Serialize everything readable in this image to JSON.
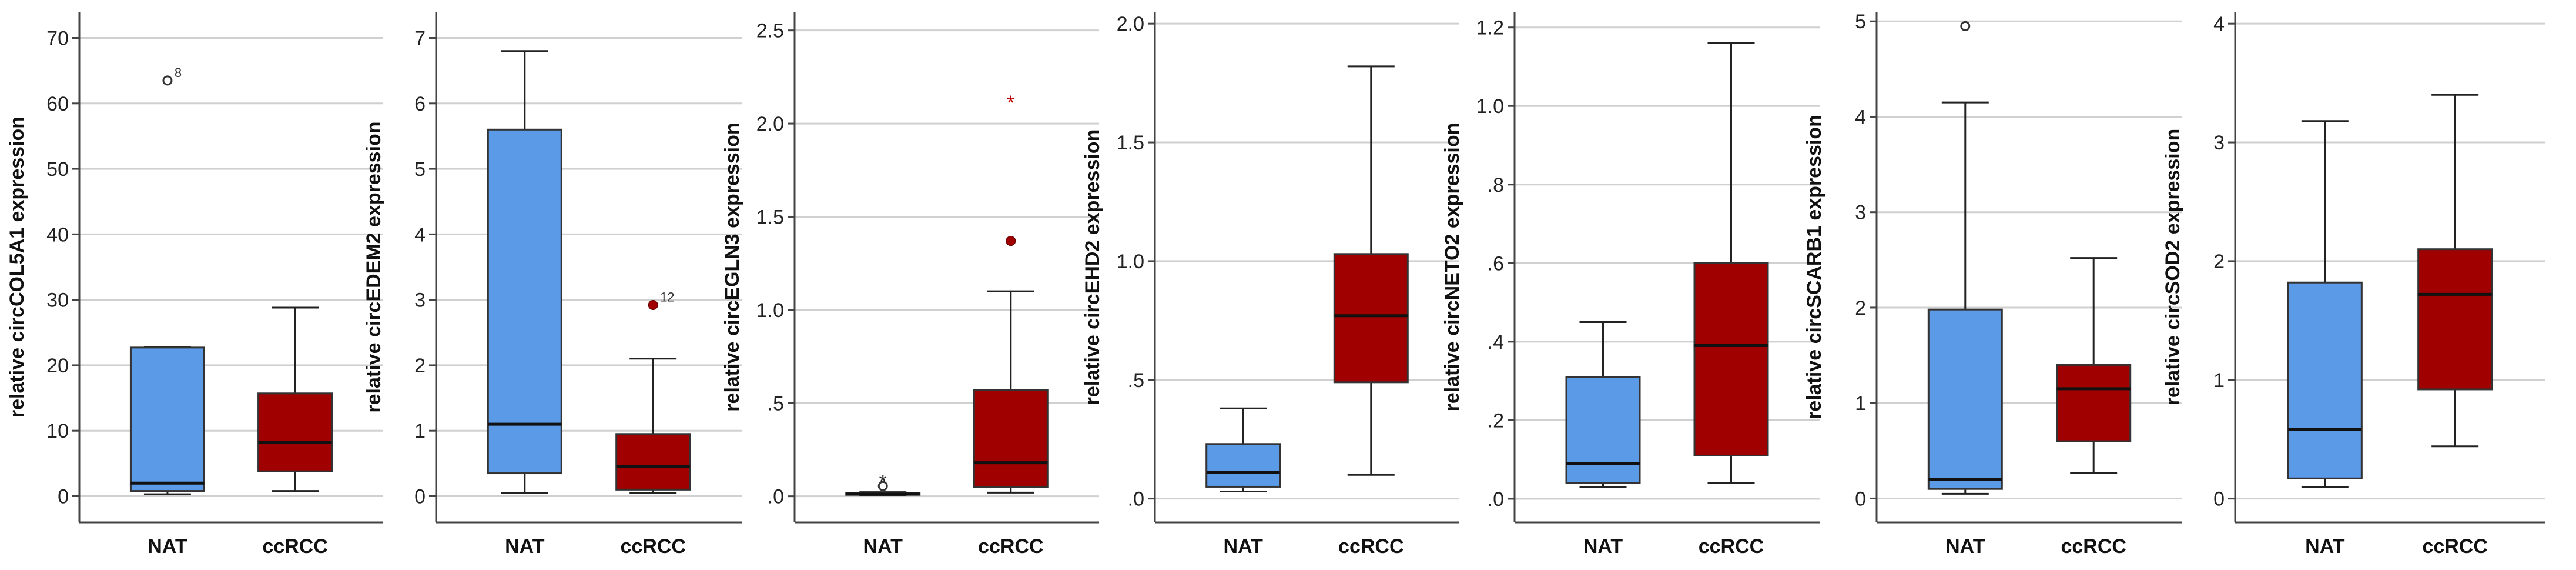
{
  "colors": {
    "NAT": "#5b9ae6",
    "ccRCC": "#a00000",
    "grid": "#d0d0d0",
    "axis": "#444444"
  },
  "chart_data": [
    {
      "type": "box",
      "ylabel": "relative circCOL5A1 expression",
      "ylim": [
        -4,
        74
      ],
      "ticks": [
        0,
        10,
        20,
        30,
        40,
        50,
        60,
        70
      ],
      "tick_labels": [
        "0",
        "10",
        "20",
        "30",
        "40",
        "50",
        "60",
        "70"
      ],
      "categories": [
        "NAT",
        "ccRCC"
      ],
      "boxes": [
        {
          "name": "NAT",
          "min": 0.3,
          "q1": 0.8,
          "median": 2.0,
          "q3": 22.7,
          "max": 22.8,
          "outliers": [
            {
              "value": 63.5,
              "marker": "circle",
              "label": "8"
            }
          ]
        },
        {
          "name": "ccRCC",
          "min": 0.8,
          "q1": 3.8,
          "median": 8.2,
          "q3": 15.7,
          "max": 28.8,
          "outliers": []
        }
      ]
    },
    {
      "type": "box",
      "ylabel": "relative circEDEM2 expression",
      "ylim": [
        -0.4,
        7.4
      ],
      "ticks": [
        0,
        1,
        2,
        3,
        4,
        5,
        6,
        7
      ],
      "tick_labels": [
        "0",
        "1",
        "2",
        "3",
        "4",
        "5",
        "6",
        "7"
      ],
      "categories": [
        "NAT",
        "ccRCC"
      ],
      "boxes": [
        {
          "name": "NAT",
          "min": 0.05,
          "q1": 0.35,
          "median": 1.1,
          "q3": 5.6,
          "max": 6.8,
          "outliers": []
        },
        {
          "name": "ccRCC",
          "min": 0.05,
          "q1": 0.1,
          "median": 0.45,
          "q3": 0.95,
          "max": 2.1,
          "outliers": [
            {
              "value": 2.92,
              "marker": "dot",
              "label": "12"
            }
          ]
        }
      ]
    },
    {
      "type": "box",
      "ylabel": "relative circEGLN3 expression",
      "ylim": [
        -0.14,
        2.6
      ],
      "ticks": [
        0,
        0.5,
        1.0,
        1.5,
        2.0,
        2.5
      ],
      "tick_labels": [
        ".0",
        ".5",
        "1.0",
        "1.5",
        "2.0",
        "2.5"
      ],
      "categories": [
        "NAT",
        "ccRCC"
      ],
      "boxes": [
        {
          "name": "NAT",
          "min": 0.005,
          "q1": 0.008,
          "median": 0.012,
          "q3": 0.018,
          "max": 0.022,
          "outliers": [
            {
              "value": 0.055,
              "marker": "circle",
              "label": ""
            },
            {
              "value": 0.085,
              "marker": "star",
              "label": ""
            }
          ]
        },
        {
          "name": "ccRCC",
          "min": 0.02,
          "q1": 0.05,
          "median": 0.18,
          "q3": 0.57,
          "max": 1.1,
          "outliers": [
            {
              "value": 1.37,
              "marker": "dot",
              "label": ""
            },
            {
              "value": 2.12,
              "marker": "star",
              "label": ""
            }
          ]
        }
      ]
    },
    {
      "type": "box",
      "ylabel": "relative circEHD2 expression",
      "ylim": [
        -0.1,
        2.05
      ],
      "ticks": [
        0,
        0.5,
        1.0,
        1.5,
        2.0
      ],
      "tick_labels": [
        ".0",
        ".5",
        "1.0",
        "1.5",
        "2.0"
      ],
      "categories": [
        "NAT",
        "ccRCC"
      ],
      "boxes": [
        {
          "name": "NAT",
          "min": 0.03,
          "q1": 0.05,
          "median": 0.11,
          "q3": 0.23,
          "max": 0.38,
          "outliers": []
        },
        {
          "name": "ccRCC",
          "min": 0.1,
          "q1": 0.49,
          "median": 0.77,
          "q3": 1.03,
          "max": 1.82,
          "outliers": []
        }
      ]
    },
    {
      "type": "box",
      "ylabel": "relative circNETO2 expression",
      "ylim": [
        -0.06,
        1.24
      ],
      "ticks": [
        0,
        0.2,
        0.4,
        0.6,
        0.8,
        1.0,
        1.2
      ],
      "tick_labels": [
        ".0",
        ".2",
        ".4",
        ".6",
        ".8",
        "1.0",
        "1.2"
      ],
      "categories": [
        "NAT",
        "ccRCC"
      ],
      "boxes": [
        {
          "name": "NAT",
          "min": 0.03,
          "q1": 0.04,
          "median": 0.09,
          "q3": 0.31,
          "max": 0.45,
          "outliers": []
        },
        {
          "name": "ccRCC",
          "min": 0.04,
          "q1": 0.11,
          "median": 0.39,
          "q3": 0.6,
          "max": 1.16,
          "outliers": []
        }
      ]
    },
    {
      "type": "box",
      "ylabel": "relative circSCARB1 expression",
      "ylim": [
        -0.25,
        5.1
      ],
      "ticks": [
        0,
        1,
        2,
        3,
        4,
        5
      ],
      "tick_labels": [
        "0",
        "1",
        "2",
        "3",
        "4",
        "5"
      ],
      "categories": [
        "NAT",
        "ccRCC"
      ],
      "boxes": [
        {
          "name": "NAT",
          "min": 0.05,
          "q1": 0.1,
          "median": 0.2,
          "q3": 1.98,
          "max": 4.15,
          "outliers": [
            {
              "value": 4.95,
              "marker": "circle",
              "label": ""
            }
          ]
        },
        {
          "name": "ccRCC",
          "min": 0.27,
          "q1": 0.6,
          "median": 1.15,
          "q3": 1.4,
          "max": 2.52,
          "outliers": []
        }
      ]
    },
    {
      "type": "box",
      "ylabel": "relative circSOD2 expression",
      "ylim": [
        -0.2,
        4.1
      ],
      "ticks": [
        0,
        1,
        2,
        3,
        4
      ],
      "tick_labels": [
        "0",
        "1",
        "2",
        "3",
        "4"
      ],
      "categories": [
        "NAT",
        "ccRCC"
      ],
      "boxes": [
        {
          "name": "NAT",
          "min": 0.1,
          "q1": 0.17,
          "median": 0.58,
          "q3": 1.82,
          "max": 3.18,
          "outliers": []
        },
        {
          "name": "ccRCC",
          "min": 0.44,
          "q1": 0.92,
          "median": 1.72,
          "q3": 2.1,
          "max": 3.4,
          "outliers": []
        }
      ]
    }
  ]
}
